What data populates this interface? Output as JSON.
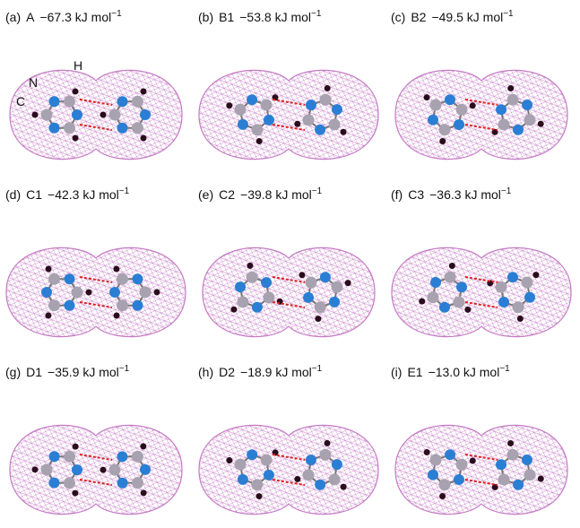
{
  "panels": [
    {
      "label": "(a)",
      "name": "A",
      "energy": "−67.3 kJ mol",
      "sup": "−1",
      "atom_labels": [
        "N",
        "H",
        "C"
      ]
    },
    {
      "label": "(b)",
      "name": "B1",
      "energy": "−53.8 kJ mol",
      "sup": "−1"
    },
    {
      "label": "(c)",
      "name": "B2",
      "energy": "−49.5 kJ mol",
      "sup": "−1"
    },
    {
      "label": "(d)",
      "name": "C1",
      "energy": "−42.3 kJ mol",
      "sup": "−1"
    },
    {
      "label": "(e)",
      "name": "C2",
      "energy": "−39.8 kJ mol",
      "sup": "−1"
    },
    {
      "label": "(f)",
      "name": "C3",
      "energy": "−36.3 kJ mol",
      "sup": "−1"
    },
    {
      "label": "(g)",
      "name": "D1",
      "energy": "−35.9 kJ mol",
      "sup": "−1"
    },
    {
      "label": "(h)",
      "name": "D2",
      "energy": "−18.9 kJ mol",
      "sup": "−1"
    },
    {
      "label": "(i)",
      "name": "E1",
      "energy": "−13.0 kJ mol",
      "sup": "−1"
    }
  ]
}
